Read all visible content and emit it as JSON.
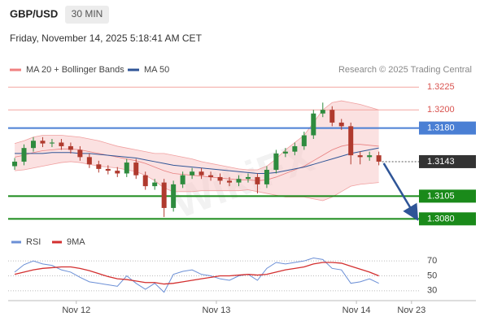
{
  "header": {
    "symbol": "GBP/USD",
    "timeframe": "30 MIN",
    "date": "Friday, November 14, 2025 5:18:41 AM CET",
    "watermark": "WikiFX"
  },
  "chart_data": [
    {
      "type": "candlestick",
      "legend": [
        {
          "name": "MA 20 + Bollinger Bands",
          "color": "#f08080"
        },
        {
          "name": "MA 50",
          "color": "#2f5597"
        }
      ],
      "source": "Research © 2025 Trading Central",
      "up_color": "#2e8b3e",
      "down_color": "#b03a2e",
      "open": [
        1.3138,
        1.3143,
        1.3158,
        1.3166,
        1.3163,
        1.3164,
        1.316,
        1.3156,
        1.3148,
        1.314,
        1.3135,
        1.3133,
        1.313,
        1.3142,
        1.3128,
        1.3116,
        1.312,
        1.3092,
        1.3118,
        1.3128,
        1.3132,
        1.3128,
        1.3126,
        1.3122,
        1.312,
        1.3124,
        1.3126,
        1.3118,
        1.3134,
        1.3152,
        1.3154,
        1.316,
        1.3172,
        1.3196,
        1.32,
        1.3186,
        1.3182,
        1.315,
        1.3148,
        1.315
      ],
      "high": [
        1.3147,
        1.3162,
        1.317,
        1.317,
        1.3168,
        1.3168,
        1.3164,
        1.316,
        1.3152,
        1.3144,
        1.3139,
        1.3137,
        1.3146,
        1.3146,
        1.3132,
        1.3124,
        1.3124,
        1.3122,
        1.3132,
        1.3136,
        1.3136,
        1.3132,
        1.313,
        1.3126,
        1.3128,
        1.313,
        1.313,
        1.3138,
        1.3156,
        1.3158,
        1.3164,
        1.3176,
        1.32,
        1.3208,
        1.3204,
        1.319,
        1.3186,
        1.3154,
        1.3154,
        1.3154
      ],
      "low": [
        1.3134,
        1.3139,
        1.3154,
        1.3159,
        1.3159,
        1.3156,
        1.3152,
        1.3144,
        1.3136,
        1.3131,
        1.3129,
        1.3126,
        1.3126,
        1.3124,
        1.3112,
        1.3112,
        1.3082,
        1.3088,
        1.3114,
        1.3124,
        1.3124,
        1.3122,
        1.3118,
        1.3116,
        1.3116,
        1.312,
        1.3108,
        1.3114,
        1.313,
        1.3148,
        1.315,
        1.3156,
        1.3168,
        1.3192,
        1.3182,
        1.3178,
        1.314,
        1.314,
        1.3144,
        1.3139
      ],
      "close": [
        1.3143,
        1.3158,
        1.3166,
        1.3163,
        1.3164,
        1.316,
        1.3156,
        1.3148,
        1.314,
        1.3135,
        1.3133,
        1.313,
        1.3142,
        1.3128,
        1.3116,
        1.312,
        1.3092,
        1.3118,
        1.3128,
        1.3132,
        1.3128,
        1.3126,
        1.3122,
        1.312,
        1.3124,
        1.3126,
        1.3118,
        1.3134,
        1.3152,
        1.3154,
        1.316,
        1.3172,
        1.3196,
        1.32,
        1.3186,
        1.3182,
        1.315,
        1.3148,
        1.315,
        1.3143
      ],
      "ma20": [
        1.3148,
        1.315,
        1.3153,
        1.3155,
        1.3156,
        1.3157,
        1.3157,
        1.3156,
        1.3154,
        1.3152,
        1.315,
        1.3148,
        1.3146,
        1.3144,
        1.3141,
        1.3137,
        1.3133,
        1.313,
        1.3129,
        1.3128,
        1.3127,
        1.3126,
        1.3125,
        1.3124,
        1.3123,
        1.3123,
        1.3122,
        1.3123,
        1.3126,
        1.313,
        1.3134,
        1.3138,
        1.3144,
        1.315,
        1.3156,
        1.316,
        1.3162,
        1.3162,
        1.3161,
        1.316
      ],
      "bollinger_upper": [
        1.3163,
        1.3166,
        1.317,
        1.3172,
        1.3172,
        1.3172,
        1.3171,
        1.317,
        1.3168,
        1.3166,
        1.3163,
        1.316,
        1.3158,
        1.3156,
        1.3154,
        1.3152,
        1.3152,
        1.315,
        1.3148,
        1.3146,
        1.3143,
        1.3141,
        1.3139,
        1.3137,
        1.3135,
        1.3134,
        1.3134,
        1.3138,
        1.3146,
        1.3156,
        1.3164,
        1.3172,
        1.3186,
        1.32,
        1.3208,
        1.321,
        1.3208,
        1.3206,
        1.3203,
        1.32
      ],
      "bollinger_lower": [
        1.3133,
        1.3134,
        1.3136,
        1.3138,
        1.314,
        1.3142,
        1.3143,
        1.3142,
        1.314,
        1.3138,
        1.3137,
        1.3136,
        1.3134,
        1.3132,
        1.3128,
        1.3122,
        1.3114,
        1.311,
        1.311,
        1.311,
        1.3111,
        1.3111,
        1.3111,
        1.3111,
        1.3111,
        1.3112,
        1.311,
        1.3108,
        1.3106,
        1.3104,
        1.3104,
        1.3104,
        1.3102,
        1.31,
        1.3104,
        1.311,
        1.3116,
        1.3118,
        1.3119,
        1.312
      ],
      "ma50": [
        1.3152,
        1.3152,
        1.3152,
        1.3152,
        1.3153,
        1.3153,
        1.3153,
        1.3152,
        1.3152,
        1.3151,
        1.315,
        1.3149,
        1.3148,
        1.3147,
        1.3145,
        1.3143,
        1.3141,
        1.3139,
        1.3138,
        1.3137,
        1.3136,
        1.3135,
        1.3134,
        1.3133,
        1.3132,
        1.3131,
        1.313,
        1.313,
        1.3131,
        1.3133,
        1.3135,
        1.3137,
        1.314,
        1.3143,
        1.3146,
        1.3149,
        1.3152,
        1.3154,
        1.3156,
        1.3158
      ],
      "levels": [
        {
          "value": 1.3225,
          "label": "1.3225",
          "color": "#f4a6a0",
          "boxed": false,
          "dotted": false
        },
        {
          "value": 1.32,
          "label": "1.3200",
          "color": "#f4a6a0",
          "boxed": false,
          "dotted": false
        },
        {
          "value": 1.318,
          "label": "1.3180",
          "color": "#4a7fd4",
          "boxed": true,
          "dotted": false
        },
        {
          "value": 1.3143,
          "label": "1.3143",
          "color": "#333333",
          "boxed": true,
          "dotted": true
        },
        {
          "value": 1.3105,
          "label": "1.3105",
          "color": "#1a8a1a",
          "boxed": true,
          "dotted": false
        },
        {
          "value": 1.308,
          "label": "1.3080",
          "color": "#1a8a1a",
          "boxed": true,
          "dotted": false
        }
      ],
      "ylim": [
        1.3066,
        1.3236
      ],
      "xlim": [
        -0.7,
        43.3
      ],
      "xticks": [
        {
          "value": 6.6,
          "label": "Nov 12"
        },
        {
          "value": 21.6,
          "label": "Nov 13"
        },
        {
          "value": 36.6,
          "label": "Nov 14"
        },
        {
          "value": 42.5,
          "label": "Nov 23"
        }
      ]
    },
    {
      "type": "line",
      "series": [
        {
          "name": "RSI",
          "color": "#6b8fd6",
          "values": [
            55,
            65,
            70,
            66,
            64,
            58,
            55,
            48,
            42,
            40,
            38,
            36,
            50,
            40,
            32,
            40,
            28,
            52,
            56,
            58,
            52,
            50,
            46,
            44,
            50,
            52,
            44,
            60,
            68,
            66,
            68,
            70,
            74,
            72,
            60,
            58,
            40,
            42,
            46,
            40
          ]
        },
        {
          "name": "9MA",
          "color": "#d32f2f",
          "values": [
            52,
            55,
            58,
            60,
            61,
            62,
            62,
            60,
            57,
            53,
            49,
            46,
            45,
            43,
            41,
            41,
            39,
            40,
            42,
            44,
            46,
            48,
            50,
            50,
            51,
            52,
            51,
            52,
            55,
            58,
            60,
            62,
            66,
            68,
            68,
            67,
            63,
            59,
            55,
            50
          ]
        }
      ],
      "ylim": [
        20,
        80
      ],
      "yticks": [
        30,
        50,
        70
      ],
      "xlim": [
        -0.7,
        43.3
      ]
    }
  ]
}
